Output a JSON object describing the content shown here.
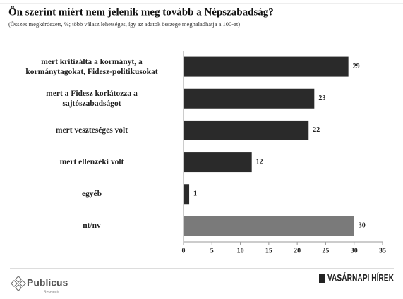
{
  "chart_data": {
    "type": "hbar",
    "title": "Ön szerint miért nem jelenik meg tovább a Népszabadság?",
    "subtitle": "(Összes megkérdezett, %; több válasz lehetséges, így az adatok összege meghaladhatja a 100-at)",
    "categories": [
      "mert kritizálta a kormányt, a\nkormánytagokat, Fidesz-politikusokat",
      "mert a Fidesz korlátozza a\nsajtószabadságot",
      "mert veszteséges volt",
      "mert ellenzéki volt",
      "egyéb",
      "nt/nv"
    ],
    "values": [
      29,
      23,
      22,
      12,
      1,
      30
    ],
    "colors": [
      "#2a2a2a",
      "#2a2a2a",
      "#2a2a2a",
      "#2a2a2a",
      "#2a2a2a",
      "#7a7a7a"
    ],
    "xlim": [
      0,
      35
    ],
    "xticks": [
      0,
      5,
      10,
      15,
      20,
      25,
      30,
      35
    ],
    "footer_left": "Publicus",
    "footer_left_sub": "Research",
    "footer_right": "VASÁRNAPI HÍREK"
  }
}
